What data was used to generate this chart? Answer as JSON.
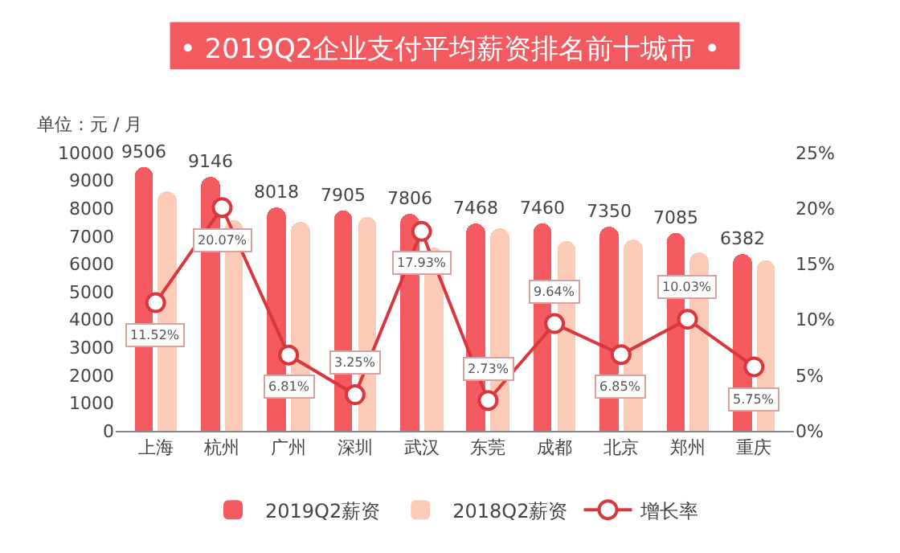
{
  "chart_data": {
    "type": "bar",
    "title": "• 2019Q2企业支付平均薪资排名前十城市 •",
    "ylabel": "单位：元 / 月",
    "categories": [
      "上海",
      "杭州",
      "广州",
      "深圳",
      "武汉",
      "东莞",
      "成都",
      "北京",
      "郑州",
      "重庆"
    ],
    "series": [
      {
        "name": "2019Q2薪资",
        "color": "#f45b60",
        "values": [
          9506,
          9146,
          8018,
          7905,
          7806,
          7468,
          7460,
          7350,
          7085,
          6382
        ],
        "value_labels": [
          "9506",
          "9146",
          "8018",
          "7905",
          "7806",
          "7468",
          "7460",
          "7350",
          "7085",
          "6382"
        ]
      },
      {
        "name": "2018Q2薪资",
        "color": "#fbcbb8",
        "values": [
          8600,
          7600,
          7500,
          7700,
          6600,
          7300,
          6800,
          6900,
          6400,
          6100
        ]
      },
      {
        "name": "增长率",
        "type": "line",
        "axis": "y2",
        "color": "#d9363e",
        "marker": "circle",
        "values": [
          11.52,
          20.07,
          6.81,
          3.25,
          17.93,
          2.73,
          9.64,
          6.85,
          10.03,
          5.75
        ],
        "value_labels": [
          "11.52%",
          "20.07%",
          "6.81%",
          "3.25%",
          "17.93%",
          "2.73%",
          "9.64%",
          "6.85%",
          "10.03%",
          "5.75%"
        ]
      }
    ],
    "ylim": [
      0,
      10000
    ],
    "yticks": [
      0,
      1000,
      2000,
      3000,
      4000,
      5000,
      6000,
      7000,
      8000,
      9000,
      10000
    ],
    "y2lim": [
      0,
      25
    ],
    "y2ticks": [
      {
        "value": 0,
        "label": "0%"
      },
      {
        "value": 5,
        "label": "5%"
      },
      {
        "value": 10,
        "label": "10%"
      },
      {
        "value": 15,
        "label": "15%"
      },
      {
        "value": 20,
        "label": "20%"
      },
      {
        "value": 25,
        "label": "25%"
      }
    ],
    "legend": "bottom"
  }
}
